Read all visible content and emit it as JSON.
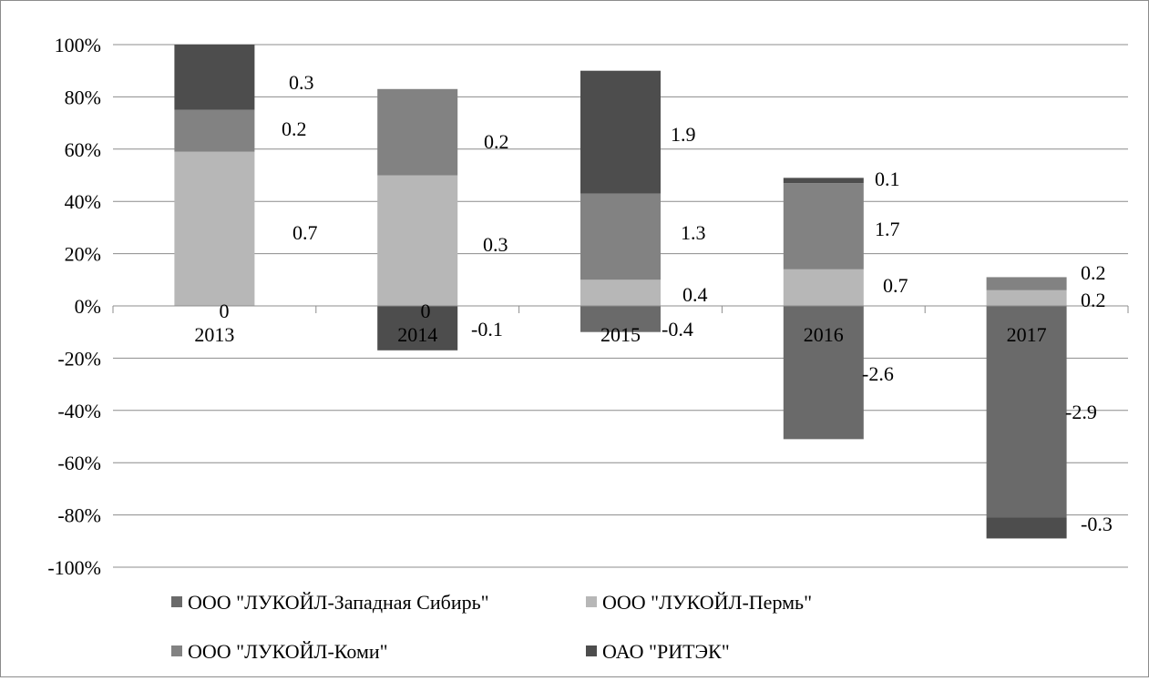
{
  "chart_data": {
    "type": "bar",
    "stacked": true,
    "categories": [
      "2013",
      "2014",
      "2015",
      "2016",
      "2017"
    ],
    "y_ticks": [
      "100%",
      "80%",
      "60%",
      "40%",
      "20%",
      "0%",
      "-20%",
      "-40%",
      "-60%",
      "-80%",
      "-100%"
    ],
    "ylim": [
      -100,
      100
    ],
    "y_unit": "%",
    "grid": true,
    "legend_position": "bottom",
    "series": [
      {
        "name": "ООО \"ЛУКОЙЛ-Западная Сибирь\"",
        "color": "#6a6a6a",
        "percent": [
          0,
          0,
          -10,
          -51,
          -81
        ],
        "labels": [
          "0",
          "0",
          "-0.4",
          "-2.6",
          "-2.9"
        ]
      },
      {
        "name": "ООО \"ЛУКОЙЛ-Пермь\"",
        "color": "#b7b7b7",
        "percent": [
          59,
          50,
          10,
          14,
          6
        ],
        "labels": [
          "0.7",
          "0.3",
          "0.4",
          "0.7",
          "0.2"
        ]
      },
      {
        "name": "ООО \"ЛУКОЙЛ-Коми\"",
        "color": "#828282",
        "percent": [
          16,
          33,
          33,
          33,
          5
        ],
        "labels": [
          "0.2",
          "0.2",
          "1.3",
          "1.7",
          "0.2"
        ]
      },
      {
        "name": "ОАО \"РИТЭК\"",
        "color": "#4d4d4d",
        "percent": [
          25,
          -17,
          47,
          2,
          -8
        ],
        "labels": [
          "0.3",
          "-0.1",
          "1.9",
          "0.1",
          "-0.3"
        ]
      }
    ]
  }
}
